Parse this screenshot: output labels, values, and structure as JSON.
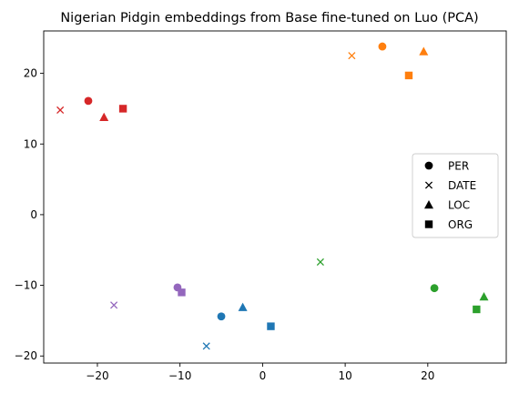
{
  "chart_data": {
    "type": "scatter",
    "title": "Nigerian Pidgin embeddings from Base fine-tuned on Luo (PCA)",
    "xlabel": "",
    "ylabel": "",
    "xlim": [
      -26.5,
      29.5
    ],
    "ylim": [
      -21,
      26
    ],
    "xticks": [
      -20,
      -10,
      0,
      10,
      20
    ],
    "yticks": [
      -20,
      -10,
      0,
      10,
      20
    ],
    "grid": false,
    "legend_position": "center-right",
    "legend": [
      {
        "label": "PER",
        "marker": "circle"
      },
      {
        "label": "DATE",
        "marker": "x"
      },
      {
        "label": "LOC",
        "marker": "triangle"
      },
      {
        "label": "ORG",
        "marker": "square"
      }
    ],
    "groups": [
      {
        "color": "#d62728",
        "points": [
          {
            "marker": "circle",
            "x": -21.1,
            "y": 16.1
          },
          {
            "marker": "x",
            "x": -24.5,
            "y": 14.8
          },
          {
            "marker": "triangle",
            "x": -19.2,
            "y": 13.8
          },
          {
            "marker": "square",
            "x": -16.9,
            "y": 15.0
          }
        ]
      },
      {
        "color": "#ff7f0e",
        "points": [
          {
            "marker": "circle",
            "x": 14.5,
            "y": 23.8
          },
          {
            "marker": "x",
            "x": 10.8,
            "y": 22.5
          },
          {
            "marker": "triangle",
            "x": 19.5,
            "y": 23.1
          },
          {
            "marker": "square",
            "x": 17.7,
            "y": 19.7
          }
        ]
      },
      {
        "color": "#9467bd",
        "points": [
          {
            "marker": "circle",
            "x": -10.3,
            "y": -10.3
          },
          {
            "marker": "x",
            "x": -18.0,
            "y": -12.8
          },
          {
            "marker": "square",
            "x": -9.8,
            "y": -11.0
          }
        ]
      },
      {
        "color": "#1f77b4",
        "points": [
          {
            "marker": "circle",
            "x": -5.0,
            "y": -14.4
          },
          {
            "marker": "x",
            "x": -6.8,
            "y": -18.6
          },
          {
            "marker": "triangle",
            "x": -2.4,
            "y": -13.1
          },
          {
            "marker": "square",
            "x": 1.0,
            "y": -15.8
          }
        ]
      },
      {
        "color": "#2ca02c",
        "points": [
          {
            "marker": "circle",
            "x": 20.8,
            "y": -10.4
          },
          {
            "marker": "x",
            "x": 7.0,
            "y": -6.7
          },
          {
            "marker": "triangle",
            "x": 26.8,
            "y": -11.6
          },
          {
            "marker": "square",
            "x": 25.9,
            "y": -13.4
          }
        ]
      }
    ]
  }
}
